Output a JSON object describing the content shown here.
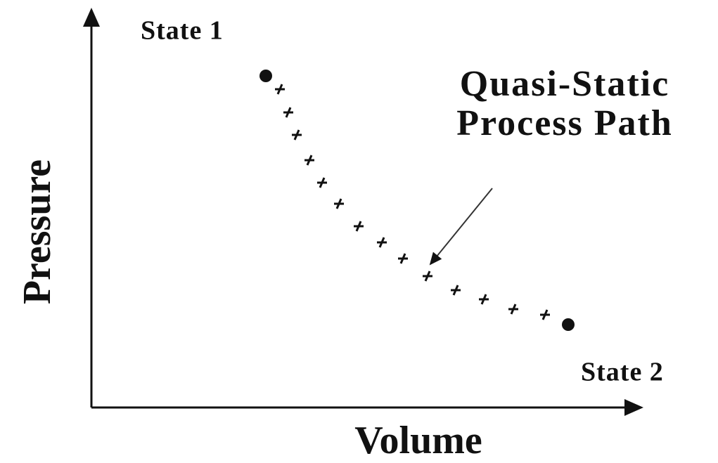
{
  "axes": {
    "x_label": "Volume",
    "y_label": "Pressure"
  },
  "states": [
    {
      "label": "State 1"
    },
    {
      "label": "State 2"
    }
  ],
  "annotation": {
    "lines": [
      "Quasi-Static",
      "Process Path"
    ]
  }
}
